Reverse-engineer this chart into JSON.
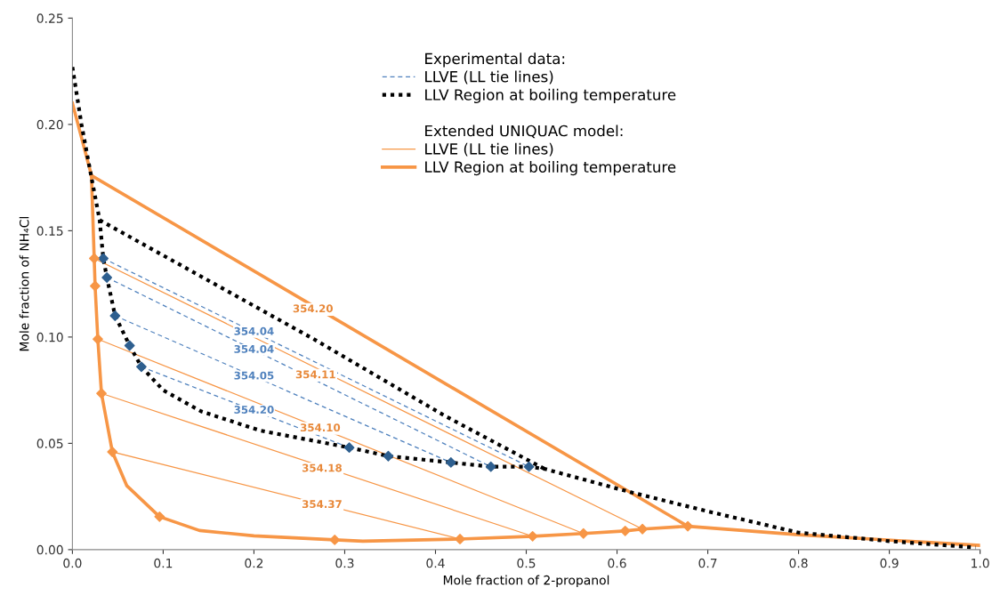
{
  "chart_data": {
    "type": "line",
    "xlabel": "Mole fraction of 2-propanol",
    "ylabel": "Mole fraction of NH₄Cl",
    "xlim": [
      0,
      1.0
    ],
    "ylim": [
      0,
      0.25
    ],
    "xticks": [
      {
        "value": 0,
        "label": "0.0"
      },
      {
        "value": 0.1,
        "label": "0.1"
      },
      {
        "value": 0.2,
        "label": "0.2"
      },
      {
        "value": 0.3,
        "label": "0.3"
      },
      {
        "value": 0.4,
        "label": "0.4"
      },
      {
        "value": 0.5,
        "label": "0.5"
      },
      {
        "value": 0.6,
        "label": "0.6"
      },
      {
        "value": 0.7,
        "label": "0.7"
      },
      {
        "value": 0.8,
        "label": "0.8"
      },
      {
        "value": 0.9,
        "label": "0.9"
      },
      {
        "value": 1.0,
        "label": "1.0"
      }
    ],
    "yticks": [
      {
        "value": 0,
        "label": "0.00"
      },
      {
        "value": 0.05,
        "label": "0.05"
      },
      {
        "value": 0.1,
        "label": "0.10"
      },
      {
        "value": 0.15,
        "label": "0.15"
      },
      {
        "value": 0.2,
        "label": "0.20"
      },
      {
        "value": 0.25,
        "label": "0.25"
      }
    ],
    "grid": false,
    "legend": "top right",
    "annotations": [
      "Experimental data:",
      "Extended UNIQUAC model:",
      "354.04",
      "354.04",
      "354.05",
      "354.20",
      {
        "text": "354.20",
        "x": 0.265,
        "y": 0.113
      },
      {
        "text": "354.11",
        "x": 0.268,
        "y": 0.082
      },
      {
        "text": "354.10",
        "x": 0.273,
        "y": 0.057
      },
      {
        "text": "354.18",
        "x": 0.275,
        "y": 0.038
      },
      {
        "text": "354.37",
        "x": 0.275,
        "y": 0.021
      }
    ],
    "series": [
      {
        "name": "LLVE (LL tie lines)",
        "color": "#4f81bd",
        "line_style": "dashed",
        "x": [
          0.034,
          0.503
        ],
        "values": [
          0.137,
          0.039
        ]
      },
      {
        "color": "#4f81bd",
        "line_style": "dashed",
        "x": [
          0.038,
          0.461
        ],
        "values": [
          0.128,
          0.039
        ]
      },
      {
        "color": "#4f81bd",
        "line_style": "dashed",
        "x": [
          0.047,
          0.417
        ],
        "values": [
          0.11,
          0.041
        ]
      },
      {
        "color": "#4f81bd",
        "line_style": "dashed",
        "x": [
          0.076,
          0.305
        ],
        "values": [
          0.086,
          0.048
        ]
      },
      {
        "name": "LLV Region at boiling temperature",
        "color": "#000000",
        "line_style": "dotted",
        "x": [
          0.0,
          0.01,
          0.021,
          0.03,
          0.034,
          0.038,
          0.047,
          0.063,
          0.076,
          0.1,
          0.142,
          0.207,
          0.305,
          0.348,
          0.417,
          0.461,
          0.503,
          0.52,
          0.615,
          0.7,
          0.8,
          0.9,
          0.995
        ],
        "values": [
          0.227,
          0.2,
          0.175,
          0.155,
          0.137,
          0.128,
          0.11,
          0.096,
          0.086,
          0.075,
          0.065,
          0.056,
          0.048,
          0.044,
          0.041,
          0.039,
          0.039,
          0.038,
          0.027,
          0.018,
          0.008,
          0.004,
          0.001
        ]
      },
      {
        "color": "#000000",
        "line_style": "dotted",
        "x": [
          0.03,
          0.266,
          0.41,
          0.52
        ],
        "values": [
          0.155,
          0.099,
          0.063,
          0.038
        ]
      },
      {
        "type": "scatter",
        "color": "#2e5f8f",
        "marker": "diamond",
        "x": [
          0.034,
          0.038,
          0.047,
          0.063,
          0.076,
          0.305,
          0.348,
          0.417,
          0.461,
          0.503
        ],
        "values": [
          0.137,
          0.128,
          0.11,
          0.096,
          0.086,
          0.048,
          0.044,
          0.041,
          0.039,
          0.039
        ]
      },
      {
        "name": "LLVE (LL tie lines)",
        "color": "#f79646",
        "line_style": "solid",
        "x": [
          0.024,
          0.628
        ],
        "values": [
          0.137,
          0.0097
        ]
      },
      {
        "color": "#f79646",
        "line_style": "solid",
        "x": [
          0.028,
          0.563
        ],
        "values": [
          0.099,
          0.0076
        ]
      },
      {
        "color": "#f79646",
        "line_style": "solid",
        "x": [
          0.032,
          0.507
        ],
        "values": [
          0.0735,
          0.0063
        ]
      },
      {
        "color": "#f79646",
        "line_style": "solid",
        "x": [
          0.044,
          0.427
        ],
        "values": [
          0.046,
          0.005
        ]
      },
      {
        "name": "LLV Region at boiling temperature",
        "color": "#f79646",
        "line_style": "solid",
        "x": [
          0.0,
          0.021,
          0.024,
          0.025,
          0.028,
          0.032,
          0.044,
          0.06,
          0.096,
          0.14,
          0.2,
          0.289,
          0.32,
          0.427,
          0.507,
          0.563,
          0.609,
          0.628,
          0.678,
          0.8,
          1.0
        ],
        "values": [
          0.21,
          0.176,
          0.137,
          0.124,
          0.099,
          0.0735,
          0.046,
          0.03,
          0.0155,
          0.009,
          0.0065,
          0.0046,
          0.004,
          0.005,
          0.0063,
          0.0076,
          0.0088,
          0.0097,
          0.011,
          0.007,
          0.002
        ]
      },
      {
        "color": "#f79646",
        "line_style": "solid",
        "x": [
          0.021,
          0.678
        ],
        "values": [
          0.176,
          0.011
        ]
      },
      {
        "type": "scatter",
        "color": "#f79646",
        "marker": "diamond",
        "x": [
          0.024,
          0.025,
          0.028,
          0.032,
          0.044,
          0.096,
          0.289,
          0.427,
          0.507,
          0.563,
          0.609,
          0.628,
          0.678
        ],
        "values": [
          0.137,
          0.124,
          0.099,
          0.0735,
          0.046,
          0.0155,
          0.0046,
          0.005,
          0.0063,
          0.0076,
          0.0088,
          0.0097,
          0.011
        ]
      }
    ]
  }
}
